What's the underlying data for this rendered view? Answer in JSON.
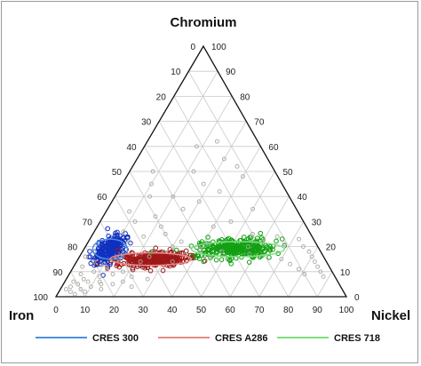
{
  "chart_data": {
    "type": "scatter",
    "subtype": "ternary",
    "title": "",
    "vertices": {
      "top": "Chromium",
      "left": "Iron",
      "right": "Nickel"
    },
    "ticks": {
      "bottom": [
        "0",
        "10",
        "20",
        "30",
        "40",
        "50",
        "60",
        "70",
        "80",
        "90",
        "100"
      ],
      "left": [
        "100",
        "90",
        "80",
        "70",
        "60",
        "50",
        "40",
        "30",
        "20",
        "10",
        "0"
      ],
      "right": [
        "0",
        "10",
        "20",
        "30",
        "40",
        "50",
        "60",
        "70",
        "80",
        "90",
        "100"
      ]
    },
    "grid": true,
    "grid_step": 10,
    "legend_position": "bottom",
    "series": [
      {
        "name": "CRES 300",
        "line_color": "#4a90e2",
        "marker_color": "#1030c0",
        "centroid": {
          "Chromium": 19,
          "Nickel": 9
        },
        "spread": {
          "Chromium": 3.0,
          "Nickel": 2.5
        },
        "ellipse": {
          "Chromium": 19,
          "Nickel": 9,
          "major": 6,
          "minor": 4
        },
        "count": 220
      },
      {
        "name": "CRES A286",
        "line_color": "#e88a8a",
        "marker_color": "#a01818",
        "centroid": {
          "Chromium": 15,
          "Nickel": 26
        },
        "spread": {
          "Chromium": 1.6,
          "Nickel": 5.5
        },
        "ellipse": {
          "Chromium": 15,
          "Nickel": 25,
          "major": 14,
          "minor": 2.5
        },
        "count": 300
      },
      {
        "name": "CRES 718",
        "line_color": "#7de07d",
        "marker_color": "#12a012",
        "centroid": {
          "Chromium": 19,
          "Nickel": 52
        },
        "spread": {
          "Chromium": 2.0,
          "Nickel": 7
        },
        "ellipse": {
          "Chromium": 19,
          "Nickel": 53,
          "major": 16,
          "minor": 3
        },
        "count": 300
      },
      {
        "name": "",
        "marker_color": "#a8a8a0",
        "points": [
          [
            3,
            2
          ],
          [
            2,
            4
          ],
          [
            4,
            3
          ],
          [
            1,
            6
          ],
          [
            3,
            7
          ],
          [
            5,
            5
          ],
          [
            2,
            9
          ],
          [
            6,
            8
          ],
          [
            4,
            10
          ],
          [
            7,
            6
          ],
          [
            8,
            11
          ],
          [
            5,
            13
          ],
          [
            6,
            3
          ],
          [
            9,
            4
          ],
          [
            10,
            8
          ],
          [
            11,
            12
          ],
          [
            9,
            15
          ],
          [
            12,
            3
          ],
          [
            14,
            6
          ],
          [
            13,
            10
          ],
          [
            15,
            14
          ],
          [
            16,
            2
          ],
          [
            18,
            4
          ],
          [
            10,
            18
          ],
          [
            12,
            20
          ],
          [
            14,
            22
          ],
          [
            16,
            24
          ],
          [
            18,
            28
          ],
          [
            20,
            30
          ],
          [
            22,
            32
          ],
          [
            14,
            33
          ],
          [
            17,
            36
          ],
          [
            19,
            40
          ],
          [
            21,
            42
          ],
          [
            16,
            45
          ],
          [
            18,
            48
          ],
          [
            20,
            56
          ],
          [
            17,
            58
          ],
          [
            22,
            60
          ],
          [
            24,
            64
          ],
          [
            21,
            68
          ],
          [
            23,
            72
          ],
          [
            20,
            75
          ],
          [
            18,
            78
          ],
          [
            16,
            80
          ],
          [
            14,
            82
          ],
          [
            12,
            84
          ],
          [
            10,
            86
          ],
          [
            8,
            88
          ],
          [
            11,
            78
          ],
          [
            9,
            81
          ],
          [
            13,
            74
          ],
          [
            15,
            70
          ],
          [
            25,
            25
          ],
          [
            28,
            22
          ],
          [
            32,
            18
          ],
          [
            35,
            26
          ],
          [
            38,
            30
          ],
          [
            40,
            20
          ],
          [
            42,
            35
          ],
          [
            45,
            28
          ],
          [
            50,
            22
          ],
          [
            55,
            30
          ],
          [
            60,
            18
          ],
          [
            62,
            24
          ],
          [
            48,
            40
          ],
          [
            52,
            36
          ],
          [
            30,
            45
          ],
          [
            35,
            50
          ],
          [
            25,
            55
          ],
          [
            28,
            40
          ],
          [
            22,
            14
          ],
          [
            24,
            18
          ],
          [
            26,
            10
          ],
          [
            30,
            12
          ],
          [
            34,
            8
          ],
          [
            6,
            20
          ],
          [
            4,
            24
          ],
          [
            7,
            28
          ],
          [
            3,
            14
          ],
          [
            5,
            17
          ],
          [
            8,
            22
          ],
          [
            40,
            12
          ],
          [
            45,
            10
          ],
          [
            50,
            8
          ],
          [
            6,
            12
          ]
        ]
      }
    ]
  },
  "legend": {
    "items": [
      "CRES 300",
      "CRES A286",
      "CRES 718"
    ]
  }
}
